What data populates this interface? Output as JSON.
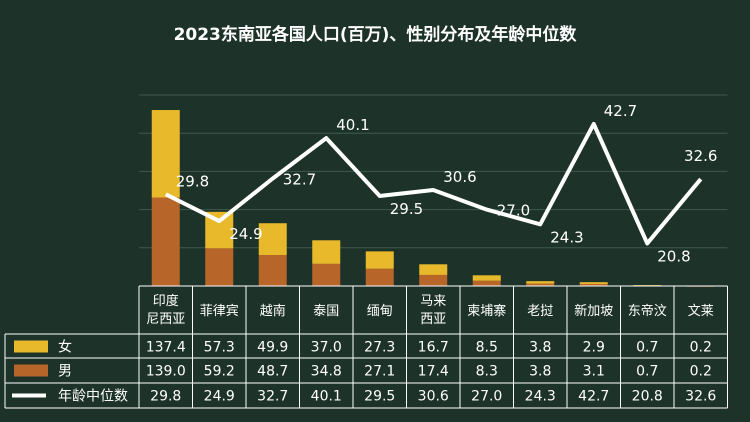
{
  "chart_data": {
    "type": "bar",
    "stacked": true,
    "title": "2023东南亚各国人口(百万)、性别分布及年龄中位数",
    "categories": [
      "印度\n尼西亚",
      "菲律宾",
      "越南",
      "泰国",
      "缅甸",
      "马来\n西亚",
      "柬埔寨",
      "老挝",
      "新加坡",
      "东帝汶",
      "文莱"
    ],
    "series": [
      {
        "name": "女",
        "kind": "bar",
        "color": "#e8b92a",
        "values": [
          137.4,
          57.3,
          49.9,
          37.0,
          27.3,
          16.7,
          8.5,
          3.8,
          2.9,
          0.7,
          0.2
        ],
        "labels": [
          "137.4",
          "57.3",
          "49.9",
          "37.0",
          "27.3",
          "16.7",
          "8.5",
          "3.8",
          "2.9",
          "0.7",
          "0.2"
        ]
      },
      {
        "name": "男",
        "kind": "bar",
        "color": "#b8652a",
        "values": [
          139.0,
          59.2,
          48.7,
          34.8,
          27.1,
          17.4,
          8.3,
          3.8,
          3.1,
          0.7,
          0.2
        ],
        "labels": [
          "139.0",
          "59.2",
          "48.7",
          "34.8",
          "27.1",
          "17.4",
          "8.3",
          "3.8",
          "3.1",
          "0.7",
          "0.2"
        ]
      },
      {
        "name": "年龄中位数",
        "kind": "line",
        "color": "#ffffff",
        "values": [
          29.8,
          24.9,
          32.7,
          40.1,
          29.5,
          30.6,
          27.0,
          24.3,
          42.7,
          20.8,
          32.6
        ],
        "labels": [
          "29.8",
          "24.9",
          "32.7",
          "40.1",
          "29.5",
          "30.6",
          "27.0",
          "24.3",
          "42.7",
          "20.8",
          "32.6"
        ]
      }
    ],
    "ylim": [
      0,
      300
    ],
    "line_ylim": [
      13,
      48
    ],
    "grid": true,
    "legend": "data-table-bottom"
  },
  "colors": {
    "background": "#1d3228",
    "grid": "#3f5a4d",
    "table_border": "#ffffff",
    "female": "#e8b92a",
    "male": "#b8652a",
    "line": "#ffffff"
  }
}
